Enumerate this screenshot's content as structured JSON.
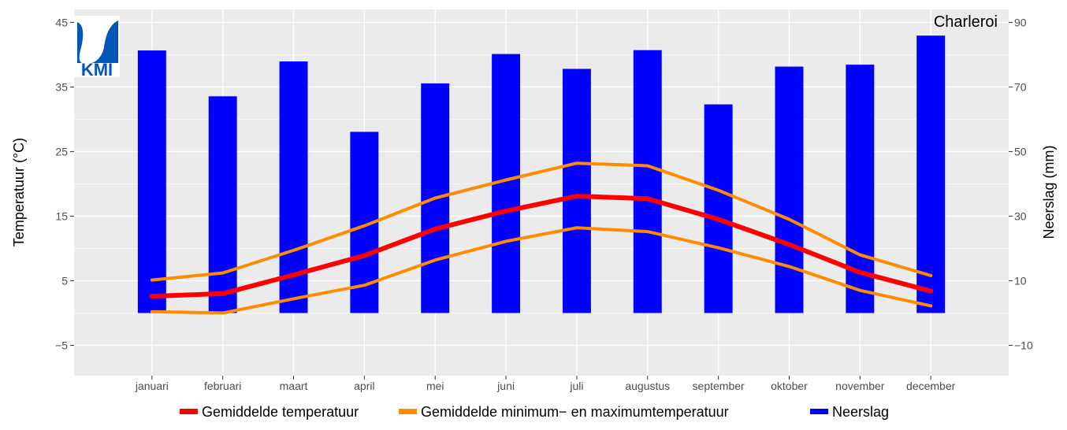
{
  "chart_data": {
    "type": "bar+line",
    "station": "Charleroi",
    "categories": [
      "januari",
      "februari",
      "maart",
      "april",
      "mei",
      "juni",
      "juli",
      "augustus",
      "september",
      "oktober",
      "november",
      "december"
    ],
    "bars": {
      "name": "Neerslag",
      "axis": "right",
      "values": [
        81.3,
        67.1,
        77.9,
        56.1,
        71.1,
        80.2,
        75.6,
        81.4,
        64.6,
        76.3,
        76.9,
        85.9
      ]
    },
    "lines": [
      {
        "name": "Gemiddelde maximumtemperatuur",
        "legend": "Gemiddelde minimum− en maximumtemperatuur",
        "axis": "left",
        "values": [
          5.1,
          6.2,
          9.7,
          13.5,
          17.8,
          20.6,
          23.2,
          22.8,
          19.0,
          14.5,
          9.0,
          5.8
        ]
      },
      {
        "name": "Gemiddelde temperatuur",
        "legend": "Gemiddelde temperatuur",
        "axis": "left",
        "values": [
          2.6,
          3.0,
          5.9,
          8.9,
          13.0,
          15.8,
          18.1,
          17.7,
          14.5,
          10.6,
          6.3,
          3.4
        ]
      },
      {
        "name": "Gemiddelde minimumtemperatuur",
        "legend": "Gemiddelde minimum− en maximumtemperatuur",
        "axis": "left",
        "values": [
          0.2,
          0.0,
          2.2,
          4.3,
          8.2,
          11.1,
          13.2,
          12.6,
          10.1,
          7.2,
          3.5,
          1.1
        ]
      }
    ],
    "ylabel_left": "Temperatuur (°C)",
    "ylabel_right": "Neerslag (mm)",
    "yticks_left": [
      -5,
      5,
      15,
      25,
      35,
      45
    ],
    "yticks_left_labels": [
      "−5",
      "5",
      "15",
      "25",
      "35",
      "45"
    ],
    "yticks_right": [
      -10,
      10,
      30,
      50,
      70,
      90
    ],
    "yticks_right_labels": [
      "−10",
      "10",
      "30",
      "50",
      "70",
      "90"
    ],
    "ylim_left": [
      -9.7,
      47.0
    ],
    "ylim_right": [
      -19.4,
      94.0
    ],
    "grid": true,
    "legend": {
      "position": "bottom",
      "items": [
        {
          "label": "Gemiddelde temperatuur",
          "color": "#ff0000"
        },
        {
          "label": "Gemiddelde minimum− en maximumtemperatuur",
          "color": "#ff8c00"
        },
        {
          "label": "Neerslag",
          "color": "#0000ff"
        }
      ]
    },
    "colors": {
      "panel": "#ebebeb",
      "grid": "#ffffff",
      "bars": "#0000ff",
      "mean_line": "#ff0000",
      "minmax_line": "#ff8c00"
    },
    "logo": {
      "text": "KMI",
      "color": "#0057b8"
    }
  }
}
